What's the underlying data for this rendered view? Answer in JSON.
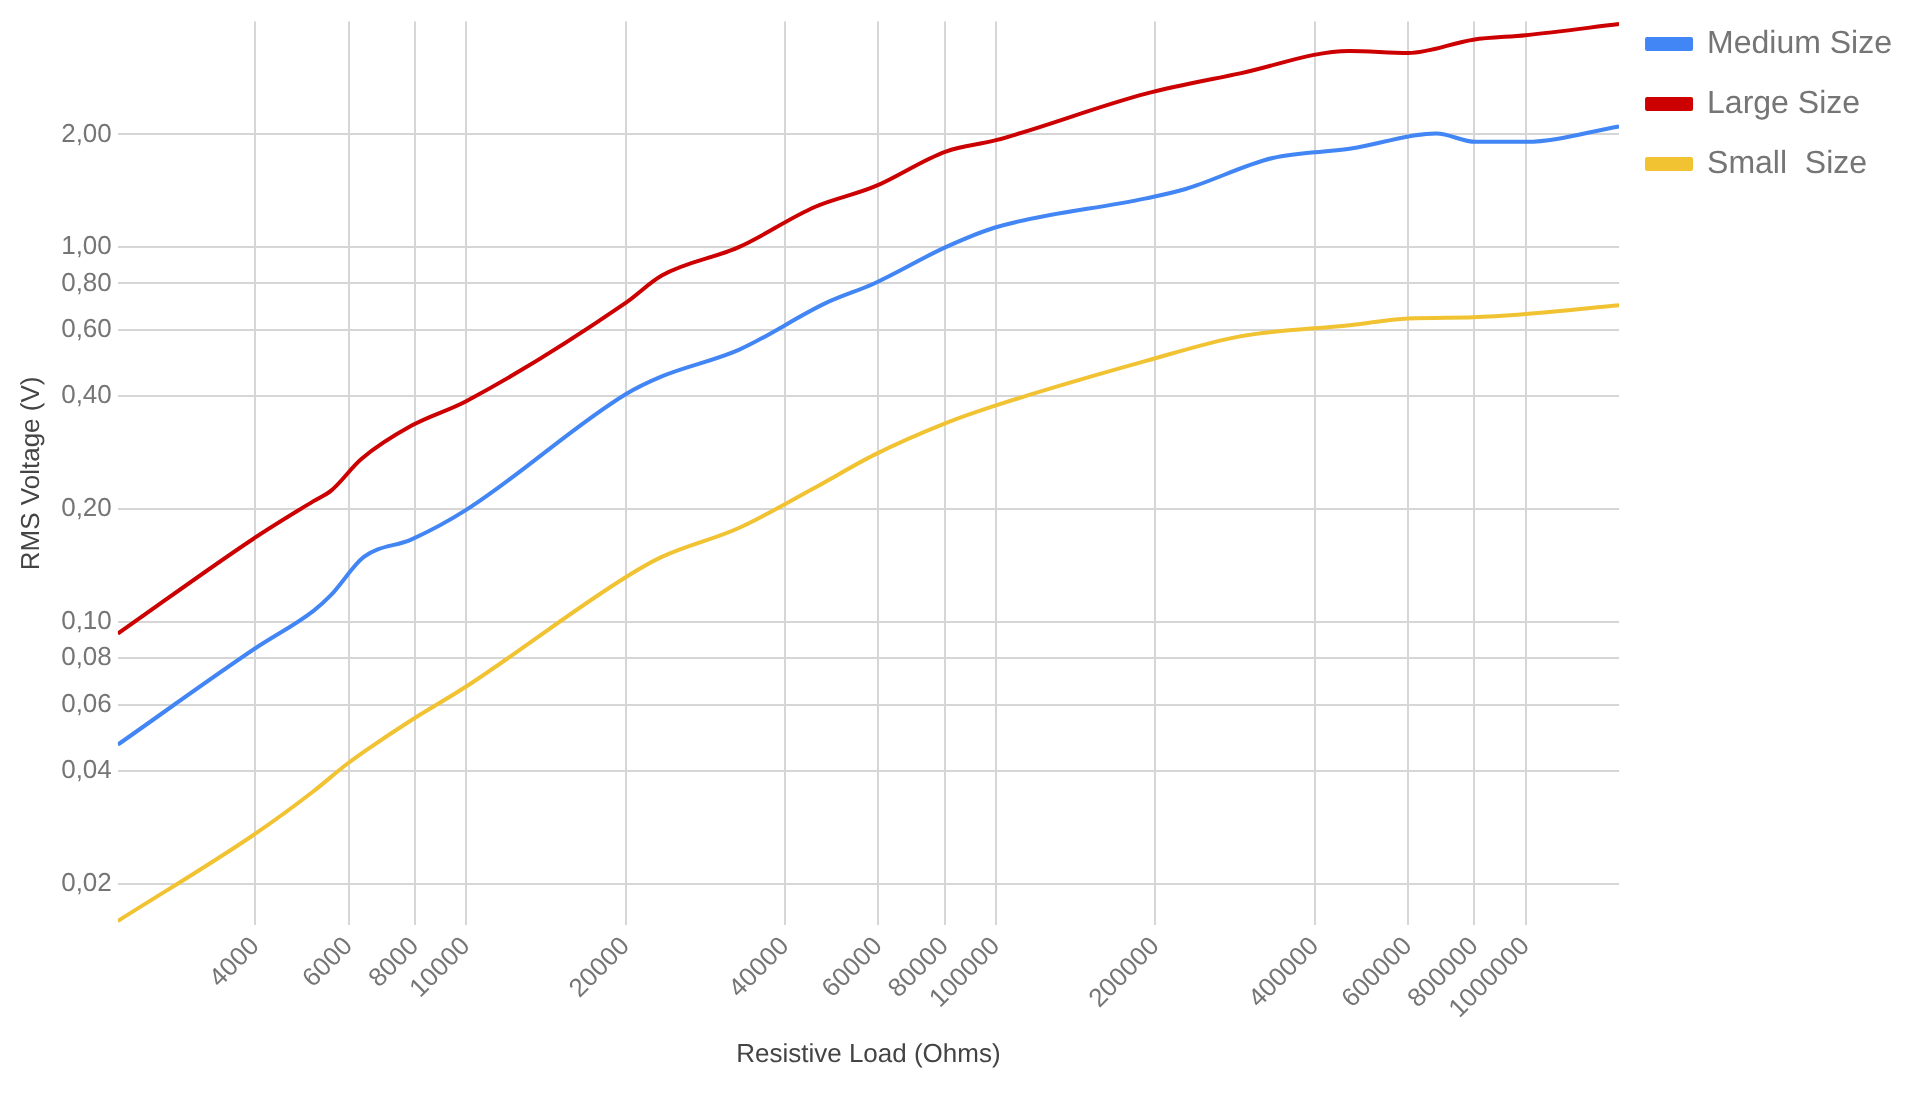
{
  "chart_data": {
    "type": "line",
    "xlabel": "Resistive Load (Ohms)",
    "ylabel": "RMS Voltage (V)",
    "log": "xy",
    "grid": true,
    "legend": "top right",
    "marker": "none",
    "line_style": "solid",
    "xlim": [
      2200,
      1500000
    ],
    "ylim": [
      0.0155,
      4
    ],
    "xticks": [
      4000,
      6000,
      8000,
      10000,
      20000,
      40000,
      60000,
      80000,
      100000,
      200000,
      400000,
      600000,
      800000,
      1000000
    ],
    "yticks": [
      {
        "value": 0.02,
        "label": "0,02"
      },
      {
        "value": 0.04,
        "label": "0,04"
      },
      {
        "value": 0.06,
        "label": "0,06"
      },
      {
        "value": 0.08,
        "label": "0,08"
      },
      {
        "value": 0.1,
        "label": "0,10"
      },
      {
        "value": 0.2,
        "label": "0,20"
      },
      {
        "value": 0.4,
        "label": "0,40"
      },
      {
        "value": 0.6,
        "label": "0,60"
      },
      {
        "value": 0.8,
        "label": "0,80"
      },
      {
        "value": 1,
        "label": "1,00"
      },
      {
        "value": 2,
        "label": "2,00"
      }
    ],
    "series": [
      {
        "name": "Medium Size",
        "color": "#4285f4",
        "x": [
          2200,
          4000,
          5150,
          5560,
          6410,
          7890,
          10000,
          20000,
          23400,
          32700,
          47800,
          58900,
          80400,
          100000,
          192000,
          228000,
          333000,
          465000,
          678000,
          804000,
          1000000,
          1500000
        ],
        "values": [
          0.047,
          0.085,
          0.107,
          0.118,
          0.149,
          0.166,
          0.199,
          0.405,
          0.452,
          0.532,
          0.71,
          0.8,
          1.0,
          1.13,
          1.35,
          1.43,
          1.73,
          1.83,
          2.01,
          1.91,
          1.91,
          2.1
        ]
      },
      {
        "name": "Large Size",
        "color": "#cc0000",
        "x": [
          2200,
          4000,
          5150,
          5560,
          6340,
          7890,
          10000,
          20000,
          23400,
          32700,
          45500,
          58900,
          80400,
          100000,
          192000,
          289000,
          465000,
          600000,
          796000,
          1000000,
          1500000
        ],
        "values": [
          0.093,
          0.168,
          0.21,
          0.224,
          0.272,
          0.334,
          0.388,
          0.71,
          0.84,
          1.0,
          1.28,
          1.45,
          1.8,
          1.93,
          2.57,
          2.91,
          3.34,
          3.3,
          3.58,
          3.68,
          3.94
        ]
      },
      {
        "name": "Small  Size",
        "color": "#f1c232",
        "x": [
          2200,
          4000,
          5150,
          5940,
          6530,
          7890,
          10000,
          20000,
          23400,
          32700,
          45500,
          58900,
          80400,
          100000,
          192000,
          289000,
          465000,
          600000,
          796000,
          1000000,
          1500000
        ],
        "values": [
          0.0159,
          0.0272,
          0.0353,
          0.0416,
          0.0458,
          0.0547,
          0.0672,
          0.1315,
          0.149,
          0.178,
          0.228,
          0.279,
          0.339,
          0.378,
          0.497,
          0.578,
          0.619,
          0.645,
          0.65,
          0.663,
          0.7
        ]
      }
    ]
  }
}
